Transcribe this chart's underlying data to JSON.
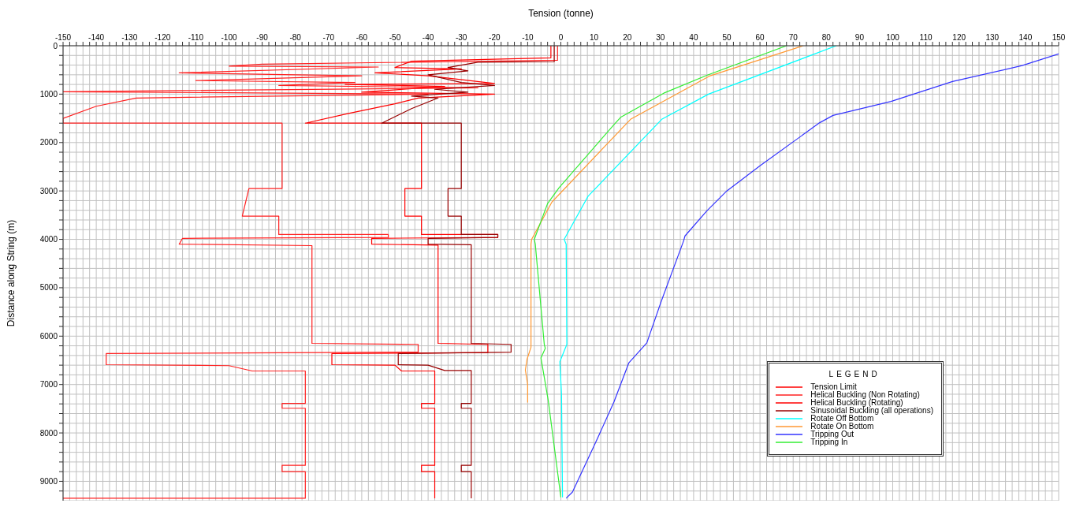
{
  "chart_data": {
    "type": "line",
    "xlabel": "Tension (tonne)",
    "ylabel": "Distance along String (m)",
    "legend_title": "LEGEND",
    "legend": "bottom right",
    "grid": true,
    "marker": "none",
    "line_style": "solid",
    "xlim": [
      -150,
      150
    ],
    "ylim": [
      9400,
      0
    ],
    "xticks": [
      -150,
      {
        "value": -148,
        "label": null
      },
      {
        "value": -146,
        "label": null
      },
      {
        "value": -144,
        "label": null
      },
      {
        "value": -142,
        "label": null
      },
      -140,
      {
        "value": -138,
        "label": null
      },
      {
        "value": -136,
        "label": null
      },
      {
        "value": -134,
        "label": null
      },
      {
        "value": -132,
        "label": null
      },
      -130,
      {
        "value": -128,
        "label": null
      },
      {
        "value": -126,
        "label": null
      },
      {
        "value": -124,
        "label": null
      },
      {
        "value": -122,
        "label": null
      },
      -120,
      {
        "value": -118,
        "label": null
      },
      {
        "value": -116,
        "label": null
      },
      {
        "value": -114,
        "label": null
      },
      {
        "value": -112,
        "label": null
      },
      -110,
      {
        "value": -108,
        "label": null
      },
      {
        "value": -106,
        "label": null
      },
      {
        "value": -104,
        "label": null
      },
      {
        "value": -102,
        "label": null
      },
      -100,
      {
        "value": -98,
        "label": null
      },
      {
        "value": -96,
        "label": null
      },
      {
        "value": -94,
        "label": null
      },
      {
        "value": -92,
        "label": null
      },
      -90,
      {
        "value": -88,
        "label": null
      },
      {
        "value": -86,
        "label": null
      },
      {
        "value": -84,
        "label": null
      },
      {
        "value": -82,
        "label": null
      },
      -80,
      {
        "value": -78,
        "label": null
      },
      {
        "value": -76,
        "label": null
      },
      {
        "value": -74,
        "label": null
      },
      {
        "value": -72,
        "label": null
      },
      -70,
      {
        "value": -68,
        "label": null
      },
      {
        "value": -66,
        "label": null
      },
      {
        "value": -64,
        "label": null
      },
      {
        "value": -62,
        "label": null
      },
      -60,
      {
        "value": -58,
        "label": null
      },
      {
        "value": -56,
        "label": null
      },
      {
        "value": -54,
        "label": null
      },
      {
        "value": -52,
        "label": null
      },
      -50,
      {
        "value": -48,
        "label": null
      },
      {
        "value": -46,
        "label": null
      },
      {
        "value": -44,
        "label": null
      },
      {
        "value": -42,
        "label": null
      },
      -40,
      {
        "value": -38,
        "label": null
      },
      {
        "value": -36,
        "label": null
      },
      {
        "value": -34,
        "label": null
      },
      {
        "value": -32,
        "label": null
      },
      -30,
      {
        "value": -28,
        "label": null
      },
      {
        "value": -26,
        "label": null
      },
      {
        "value": -24,
        "label": null
      },
      {
        "value": -22,
        "label": null
      },
      -20,
      {
        "value": -18,
        "label": null
      },
      {
        "value": -16,
        "label": null
      },
      {
        "value": -14,
        "label": null
      },
      {
        "value": -12,
        "label": null
      },
      -10,
      {
        "value": -8,
        "label": null
      },
      {
        "value": -6,
        "label": null
      },
      {
        "value": -4,
        "label": null
      },
      {
        "value": -2,
        "label": null
      },
      0,
      {
        "value": 2,
        "label": null
      },
      {
        "value": 4,
        "label": null
      },
      {
        "value": 6,
        "label": null
      },
      {
        "value": 8,
        "label": null
      },
      10,
      {
        "value": 12,
        "label": null
      },
      {
        "value": 14,
        "label": null
      },
      {
        "value": 16,
        "label": null
      },
      {
        "value": 18,
        "label": null
      },
      20,
      {
        "value": 22,
        "label": null
      },
      {
        "value": 24,
        "label": null
      },
      {
        "value": 26,
        "label": null
      },
      {
        "value": 28,
        "label": null
      },
      30,
      {
        "value": 32,
        "label": null
      },
      {
        "value": 34,
        "label": null
      },
      {
        "value": 36,
        "label": null
      },
      {
        "value": 38,
        "label": null
      },
      40,
      {
        "value": 42,
        "label": null
      },
      {
        "value": 44,
        "label": null
      },
      {
        "value": 46,
        "label": null
      },
      {
        "value": 48,
        "label": null
      },
      50,
      {
        "value": 52,
        "label": null
      },
      {
        "value": 54,
        "label": null
      },
      {
        "value": 56,
        "label": null
      },
      {
        "value": 58,
        "label": null
      },
      60,
      {
        "value": 62,
        "label": null
      },
      {
        "value": 64,
        "label": null
      },
      {
        "value": 66,
        "label": null
      },
      {
        "value": 68,
        "label": null
      },
      70,
      {
        "value": 72,
        "label": null
      },
      {
        "value": 74,
        "label": null
      },
      {
        "value": 76,
        "label": null
      },
      {
        "value": 78,
        "label": null
      },
      80,
      {
        "value": 82,
        "label": null
      },
      {
        "value": 84,
        "label": null
      },
      {
        "value": 86,
        "label": null
      },
      {
        "value": 88,
        "label": null
      },
      90,
      {
        "value": 92,
        "label": null
      },
      {
        "value": 94,
        "label": null
      },
      {
        "value": 96,
        "label": null
      },
      {
        "value": 98,
        "label": null
      },
      100,
      {
        "value": 102,
        "label": null
      },
      {
        "value": 104,
        "label": null
      },
      {
        "value": 106,
        "label": null
      },
      {
        "value": 108,
        "label": null
      },
      110,
      {
        "value": 112,
        "label": null
      },
      {
        "value": 114,
        "label": null
      },
      {
        "value": 116,
        "label": null
      },
      {
        "value": 118,
        "label": null
      },
      120,
      {
        "value": 122,
        "label": null
      },
      {
        "value": 124,
        "label": null
      },
      {
        "value": 126,
        "label": null
      },
      {
        "value": 128,
        "label": null
      },
      130,
      {
        "value": 132,
        "label": null
      },
      {
        "value": 134,
        "label": null
      },
      {
        "value": 136,
        "label": null
      },
      {
        "value": 138,
        "label": null
      },
      140,
      {
        "value": 142,
        "label": null
      },
      {
        "value": 144,
        "label": null
      },
      {
        "value": 146,
        "label": null
      },
      {
        "value": 148,
        "label": null
      },
      150
    ],
    "yticks": [
      0,
      {
        "value": 200,
        "label": null
      },
      {
        "value": 400,
        "label": null
      },
      {
        "value": 600,
        "label": null
      },
      {
        "value": 800,
        "label": null
      },
      1000,
      {
        "value": 1200,
        "label": null
      },
      {
        "value": 1400,
        "label": null
      },
      {
        "value": 1600,
        "label": null
      },
      {
        "value": 1800,
        "label": null
      },
      2000,
      {
        "value": 2200,
        "label": null
      },
      {
        "value": 2400,
        "label": null
      },
      {
        "value": 2600,
        "label": null
      },
      {
        "value": 2800,
        "label": null
      },
      3000,
      {
        "value": 3200,
        "label": null
      },
      {
        "value": 3400,
        "label": null
      },
      {
        "value": 3600,
        "label": null
      },
      {
        "value": 3800,
        "label": null
      },
      4000,
      {
        "value": 4200,
        "label": null
      },
      {
        "value": 4400,
        "label": null
      },
      {
        "value": 4600,
        "label": null
      },
      {
        "value": 4800,
        "label": null
      },
      5000,
      {
        "value": 5200,
        "label": null
      },
      {
        "value": 5400,
        "label": null
      },
      {
        "value": 5600,
        "label": null
      },
      {
        "value": 5800,
        "label": null
      },
      6000,
      {
        "value": 6200,
        "label": null
      },
      {
        "value": 6400,
        "label": null
      },
      {
        "value": 6600,
        "label": null
      },
      {
        "value": 6800,
        "label": null
      },
      7000,
      {
        "value": 7200,
        "label": null
      },
      {
        "value": 7400,
        "label": null
      },
      {
        "value": 7600,
        "label": null
      },
      {
        "value": 7800,
        "label": null
      },
      8000,
      {
        "value": 8200,
        "label": null
      },
      {
        "value": 8400,
        "label": null
      },
      {
        "value": 8600,
        "label": null
      },
      {
        "value": 8800,
        "label": null
      },
      9000,
      {
        "value": 9200,
        "label": null
      }
    ],
    "series": [
      {
        "name": "Tension Limit",
        "color": "#ff0000"
      },
      {
        "name": "Helical Buckling (Non Rotating)",
        "color": "#ff2020",
        "x": [
          -1,
          -1,
          -90,
          -100,
          -55,
          -115,
          -80,
          -60,
          -110,
          -62,
          -85,
          -25,
          -150,
          -40,
          -128,
          -140,
          -150,
          -150,
          -84,
          -84,
          -94,
          -96,
          -85,
          -85,
          -52,
          -52,
          -114,
          -115,
          -75,
          -75,
          -43,
          -43,
          -137,
          -137,
          -100,
          -93,
          -77,
          -77,
          -84,
          -84,
          -77,
          -77,
          -84,
          -84,
          -77,
          -77,
          -150
        ],
        "values": [
          0,
          300,
          380,
          420,
          440,
          560,
          600,
          620,
          720,
          760,
          820,
          870,
          950,
          1000,
          1080,
          1250,
          1500,
          1600,
          1600,
          2950,
          2950,
          3520,
          3520,
          3900,
          3900,
          3960,
          3980,
          4100,
          4130,
          6150,
          6170,
          6330,
          6360,
          6590,
          6610,
          6720,
          6720,
          7390,
          7390,
          7490,
          7490,
          8670,
          8670,
          8800,
          8800,
          9350,
          9350
        ]
      },
      {
        "name": "Helical Buckling (Rotating)",
        "color": "#ff0000",
        "x": [
          -3,
          -3,
          -45,
          -50,
          -30,
          -56,
          -40,
          -20,
          -65,
          -35,
          -60,
          -20,
          -43,
          -50,
          -64,
          -77,
          -42,
          -42,
          -47,
          -47,
          -42,
          -42,
          -19,
          -19,
          -57,
          -57,
          -37,
          -37,
          -22,
          -22,
          -69,
          -69,
          -50,
          -48,
          -38,
          -38,
          -42,
          -42,
          -38,
          -38,
          -42,
          -42,
          -38,
          -38
        ],
        "values": [
          0,
          250,
          320,
          450,
          480,
          560,
          620,
          780,
          800,
          840,
          960,
          1000,
          1080,
          1200,
          1400,
          1600,
          1600,
          2950,
          2950,
          3520,
          3520,
          3900,
          3900,
          3960,
          3980,
          4100,
          4120,
          6150,
          6170,
          6340,
          6360,
          6590,
          6600,
          6720,
          6720,
          7390,
          7390,
          7490,
          7490,
          8670,
          8670,
          8800,
          8800,
          9350
        ]
      },
      {
        "name": "Sinusoidal Buckling (all operations)",
        "color": "#990000",
        "x": [
          -2,
          -2,
          -25,
          -34,
          -28,
          -40,
          -30,
          -20,
          -38,
          -28,
          -45,
          -37,
          -45,
          -54,
          -30,
          -30,
          -34,
          -34,
          -30,
          -30,
          -19,
          -19,
          -40,
          -40,
          -27,
          -27,
          -15,
          -15,
          -49,
          -49,
          -40,
          -35,
          -27,
          -27,
          -30,
          -30,
          -27,
          -27,
          -30,
          -30,
          -27,
          -27
        ],
        "values": [
          0,
          330,
          340,
          450,
          520,
          600,
          760,
          820,
          900,
          960,
          1040,
          1080,
          1300,
          1600,
          1600,
          2950,
          2950,
          3520,
          3520,
          3900,
          3900,
          3960,
          3980,
          4100,
          4110,
          6150,
          6170,
          6330,
          6360,
          6590,
          6600,
          6710,
          6710,
          7390,
          7390,
          7490,
          7490,
          8670,
          8670,
          8800,
          8800,
          9350
        ]
      },
      {
        "name": "Rotate Off Bottom",
        "color": "#00ffff",
        "x": [
          83,
          44.5,
          30.4,
          8.2,
          1,
          1.6,
          1.8,
          -0.3,
          0.2,
          0.5
        ],
        "values": [
          0,
          1000,
          1520,
          3110,
          4000,
          4100,
          6170,
          6530,
          7200,
          9330
        ]
      },
      {
        "name": "Rotate On Bottom",
        "color": "#ff9933",
        "x": [
          73,
          45,
          21,
          -2.7,
          -8.8,
          -9,
          -9,
          -10.2,
          -10.7,
          -10,
          -10
        ],
        "values": [
          0,
          620,
          1520,
          3230,
          4000,
          4100,
          6230,
          6480,
          6700,
          7000,
          7370
        ]
      },
      {
        "name": "Tripping Out",
        "color": "#3333ff",
        "x": [
          150,
          139,
          118,
          99.5,
          82,
          78,
          60,
          50,
          44,
          37.4,
          37,
          30.2,
          25.9,
          20.5,
          16,
          10.6,
          3.5,
          1.6
        ],
        "values": [
          170,
          410,
          740,
          1150,
          1440,
          1590,
          2480,
          3000,
          3410,
          3930,
          4030,
          5290,
          6140,
          6550,
          7360,
          8180,
          9220,
          9350
        ]
      },
      {
        "name": "Tripping In",
        "color": "#33ee33",
        "x": [
          68,
          44,
          31,
          18,
          16,
          -0.5,
          -4,
          -8,
          -7.7,
          -5,
          -4.7,
          -6,
          -3.8,
          0
        ],
        "values": [
          0,
          610,
          980,
          1480,
          1630,
          2930,
          3260,
          4000,
          4100,
          6170,
          6250,
          6450,
          7330,
          9330
        ]
      }
    ]
  }
}
